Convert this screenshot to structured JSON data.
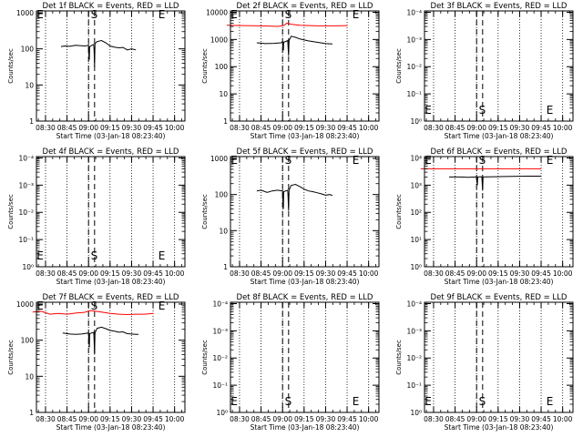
{
  "chart_data": [
    {
      "type": "line",
      "title": "Det 1f BLACK = Events, RED = LLD",
      "xlabel": "Start Time (03-Jan-18 08:23:40)",
      "ylabel": "Counts/sec",
      "x_tick_labels": [
        "08:30",
        "08:45",
        "09:00",
        "09:15",
        "09:30",
        "09:45",
        "10:00"
      ],
      "y_tick_labels": [
        "1",
        "10",
        "100",
        "1000"
      ],
      "ylim_log10": [
        0,
        3.05
      ],
      "markers": [
        {
          "label": "E",
          "x": "08:22"
        },
        {
          "label": "S",
          "x": "09:04"
        },
        {
          "label": "E",
          "x": "09:51"
        }
      ],
      "series": [
        {
          "color": "#000000",
          "values": [
            [
              8.68,
              2.06
            ],
            [
              8.72,
              2.08
            ],
            [
              8.78,
              2.07
            ],
            [
              8.85,
              2.1
            ],
            [
              8.9,
              2.09
            ],
            [
              8.96,
              2.08
            ],
            [
              9.0,
              2.1
            ],
            [
              9.003,
              1.9
            ],
            [
              9.01,
              1.7
            ],
            [
              9.013,
              2.06
            ],
            [
              9.04,
              2.1
            ],
            [
              9.06,
              2.12
            ],
            [
              9.065,
              1.95
            ],
            [
              9.07,
              1.5
            ],
            [
              9.075,
              2.15
            ],
            [
              9.1,
              2.2
            ],
            [
              9.15,
              2.23
            ],
            [
              9.2,
              2.17
            ],
            [
              9.25,
              2.08
            ],
            [
              9.3,
              2.05
            ],
            [
              9.35,
              2.03
            ],
            [
              9.4,
              2.04
            ],
            [
              9.45,
              1.97
            ],
            [
              9.5,
              2.0
            ],
            [
              9.55,
              1.97
            ]
          ]
        }
      ]
    },
    {
      "type": "line",
      "title": "Det 2f BLACK = Events, RED = LLD",
      "xlabel": "Start Time (03-Jan-18 08:23:40)",
      "ylabel": "Counts/sec",
      "x_tick_labels": [
        "08:30",
        "08:45",
        "09:00",
        "09:15",
        "09:30",
        "09:45",
        "10:00"
      ],
      "y_tick_labels": [
        "1",
        "10",
        "100",
        "1000",
        "10000"
      ],
      "ylim_log10": [
        0,
        4.05
      ],
      "markers": [
        {
          "label": "E",
          "x": "08:22"
        },
        {
          "label": "S",
          "x": "09:04"
        },
        {
          "label": "E",
          "x": "09:51"
        }
      ],
      "series": [
        {
          "color": "#000000",
          "values": [
            [
              8.7,
              2.88
            ],
            [
              8.8,
              2.85
            ],
            [
              8.9,
              2.86
            ],
            [
              8.98,
              2.88
            ],
            [
              9.0,
              2.92
            ],
            [
              9.003,
              2.7
            ],
            [
              9.01,
              2.6
            ],
            [
              9.013,
              2.9
            ],
            [
              9.06,
              2.96
            ],
            [
              9.065,
              2.7
            ],
            [
              9.07,
              2.4
            ],
            [
              9.075,
              2.96
            ],
            [
              9.1,
              3.12
            ],
            [
              9.15,
              3.08
            ],
            [
              9.2,
              3.02
            ],
            [
              9.3,
              2.95
            ],
            [
              9.4,
              2.9
            ],
            [
              9.5,
              2.85
            ],
            [
              9.58,
              2.84
            ]
          ]
        },
        {
          "color": "#ff0000",
          "values": [
            [
              8.35,
              3.52
            ],
            [
              8.55,
              3.51
            ],
            [
              8.75,
              3.5
            ],
            [
              8.95,
              3.48
            ],
            [
              9.02,
              3.52
            ],
            [
              9.05,
              3.6
            ],
            [
              9.1,
              3.56
            ],
            [
              9.2,
              3.52
            ],
            [
              9.4,
              3.5
            ],
            [
              9.6,
              3.5
            ],
            [
              9.75,
              3.51
            ]
          ]
        }
      ]
    },
    {
      "type": "line",
      "title": "Det 3f BLACK = Events, RED = LLD",
      "xlabel": "Start Time (03-Jan-18 08:23:40)",
      "ylabel": "Counts/sec",
      "x_tick_labels": [
        "08:30",
        "08:45",
        "09:00",
        "09:15",
        "09:30",
        "09:45",
        "10:00"
      ],
      "y_tick_labels": [
        "10⁰",
        "10⁻¹",
        "10⁻²",
        "10⁻³",
        "10⁻⁴"
      ],
      "ylim_log10": [
        0,
        4.05
      ],
      "markers": [
        {
          "label": "E",
          "x": "08:22"
        },
        {
          "label": "S",
          "x": "09:04"
        },
        {
          "label": "E",
          "x": "09:51"
        }
      ],
      "series": []
    },
    {
      "type": "line",
      "title": "Det 4f BLACK = Events, RED = LLD",
      "xlabel": "Start Time (03-Jan-18 08:23:40)",
      "ylabel": "Counts/sec",
      "x_tick_labels": [
        "08:30",
        "08:45",
        "09:00",
        "09:15",
        "09:30",
        "09:45",
        "10:00"
      ],
      "y_tick_labels": [
        "10⁰",
        "10⁻¹",
        "10⁻²",
        "10⁻³",
        "10⁻⁴"
      ],
      "ylim_log10": [
        0,
        4.05
      ],
      "markers": [
        {
          "label": "E",
          "x": "08:22"
        },
        {
          "label": "S",
          "x": "09:04"
        },
        {
          "label": "E",
          "x": "09:51"
        }
      ],
      "series": []
    },
    {
      "type": "line",
      "title": "Det 5f BLACK = Events, RED = LLD",
      "xlabel": "Start Time (03-Jan-18 08:23:40)",
      "ylabel": "Counts/sec",
      "x_tick_labels": [
        "08:30",
        "08:45",
        "09:00",
        "09:15",
        "09:30",
        "09:45",
        "10:00"
      ],
      "y_tick_labels": [
        "1",
        "10",
        "100",
        "1000"
      ],
      "ylim_log10": [
        0,
        3.05
      ],
      "markers": [
        {
          "label": "E",
          "x": "08:22"
        },
        {
          "label": "S",
          "x": "09:04"
        },
        {
          "label": "E",
          "x": "09:51"
        }
      ],
      "series": [
        {
          "color": "#000000",
          "values": [
            [
              8.7,
              2.1
            ],
            [
              8.75,
              2.12
            ],
            [
              8.82,
              2.06
            ],
            [
              8.88,
              2.1
            ],
            [
              8.94,
              2.12
            ],
            [
              9.0,
              2.1
            ],
            [
              9.003,
              1.9
            ],
            [
              9.01,
              1.6
            ],
            [
              9.013,
              2.08
            ],
            [
              9.06,
              2.12
            ],
            [
              9.065,
              1.9
            ],
            [
              9.07,
              1.55
            ],
            [
              9.075,
              2.12
            ],
            [
              9.1,
              2.25
            ],
            [
              9.15,
              2.28
            ],
            [
              9.2,
              2.22
            ],
            [
              9.25,
              2.15
            ],
            [
              9.3,
              2.1
            ],
            [
              9.35,
              2.08
            ],
            [
              9.4,
              2.05
            ],
            [
              9.45,
              2.02
            ],
            [
              9.5,
              1.98
            ],
            [
              9.55,
              2.0
            ],
            [
              9.58,
              1.97
            ]
          ]
        }
      ]
    },
    {
      "type": "line",
      "title": "Det 6f BLACK = Events, RED = LLD",
      "xlabel": "Start Time (03-Jan-18 08:23:40)",
      "ylabel": "Counts/sec",
      "x_tick_labels": [
        "08:30",
        "08:45",
        "09:00",
        "09:15",
        "09:30",
        "09:45",
        "10:00"
      ],
      "y_tick_labels": [
        "10⁰",
        "10¹",
        "10²",
        "10³",
        "10⁴"
      ],
      "ylim_log10": [
        0,
        4.05
      ],
      "markers": [
        {
          "label": "E",
          "x": "08:22"
        },
        {
          "label": "S",
          "x": "09:04"
        },
        {
          "label": "E",
          "x": "09:51"
        }
      ],
      "series": [
        {
          "color": "#000000",
          "values": [
            [
              8.68,
              3.3
            ],
            [
              8.8,
              3.3
            ],
            [
              8.9,
              3.29
            ],
            [
              9.0,
              3.3
            ],
            [
              9.003,
              3.15
            ],
            [
              9.01,
              3.0
            ],
            [
              9.013,
              3.3
            ],
            [
              9.06,
              3.31
            ],
            [
              9.065,
              3.1
            ],
            [
              9.07,
              2.8
            ],
            [
              9.075,
              3.3
            ],
            [
              9.2,
              3.31
            ],
            [
              9.4,
              3.32
            ],
            [
              9.6,
              3.33
            ],
            [
              9.75,
              3.33
            ]
          ]
        },
        {
          "color": "#ff0000",
          "values": [
            [
              8.35,
              3.6
            ],
            [
              8.6,
              3.6
            ],
            [
              8.85,
              3.6
            ],
            [
              9.1,
              3.6
            ],
            [
              9.35,
              3.6
            ],
            [
              9.6,
              3.6
            ],
            [
              9.75,
              3.6
            ]
          ]
        }
      ]
    },
    {
      "type": "line",
      "title": "Det 7f BLACK = Events, RED = LLD",
      "xlabel": "Start Time (03-Jan-18 08:23:40)",
      "ylabel": "Counts/sec",
      "x_tick_labels": [
        "08:30",
        "08:45",
        "09:00",
        "09:15",
        "09:30",
        "09:45",
        "10:00"
      ],
      "y_tick_labels": [
        "1",
        "10",
        "100",
        "1000"
      ],
      "ylim_log10": [
        0,
        3.05
      ],
      "markers": [
        {
          "label": "E",
          "x": "08:22"
        },
        {
          "label": "S",
          "x": "09:04"
        },
        {
          "label": "E",
          "x": "09:51"
        }
      ],
      "series": [
        {
          "color": "#000000",
          "values": [
            [
              8.7,
              2.2
            ],
            [
              8.78,
              2.17
            ],
            [
              8.85,
              2.16
            ],
            [
              8.92,
              2.17
            ],
            [
              9.0,
              2.2
            ],
            [
              9.003,
              2.0
            ],
            [
              9.01,
              1.8
            ],
            [
              9.013,
              2.18
            ],
            [
              9.06,
              2.22
            ],
            [
              9.065,
              2.0
            ],
            [
              9.07,
              1.6
            ],
            [
              9.075,
              2.2
            ],
            [
              9.1,
              2.33
            ],
            [
              9.15,
              2.36
            ],
            [
              9.2,
              2.32
            ],
            [
              9.25,
              2.27
            ],
            [
              9.3,
              2.25
            ],
            [
              9.35,
              2.22
            ],
            [
              9.4,
              2.23
            ],
            [
              9.45,
              2.18
            ],
            [
              9.5,
              2.17
            ],
            [
              9.55,
              2.16
            ],
            [
              9.58,
              2.16
            ]
          ]
        },
        {
          "color": "#ff0000",
          "values": [
            [
              8.35,
              2.78
            ],
            [
              8.45,
              2.8
            ],
            [
              8.55,
              2.72
            ],
            [
              8.65,
              2.74
            ],
            [
              8.75,
              2.72
            ],
            [
              8.85,
              2.75
            ],
            [
              8.95,
              2.77
            ],
            [
              9.02,
              2.82
            ],
            [
              9.08,
              2.8
            ],
            [
              9.15,
              2.78
            ],
            [
              9.25,
              2.74
            ],
            [
              9.35,
              2.72
            ],
            [
              9.45,
              2.71
            ],
            [
              9.55,
              2.72
            ],
            [
              9.65,
              2.72
            ],
            [
              9.75,
              2.74
            ]
          ]
        }
      ]
    },
    {
      "type": "line",
      "title": "Det 8f BLACK = Events, RED = LLD",
      "xlabel": "Start Time (03-Jan-18 08:23:40)",
      "ylabel": "Counts/sec",
      "x_tick_labels": [
        "08:30",
        "08:45",
        "09:00",
        "09:15",
        "09:30",
        "09:45",
        "10:00"
      ],
      "y_tick_labels": [
        "10⁰",
        "10⁻¹",
        "10⁻²",
        "10⁻³",
        "10⁻⁴"
      ],
      "ylim_log10": [
        0,
        4.05
      ],
      "markers": [
        {
          "label": "E",
          "x": "08:22"
        },
        {
          "label": "S",
          "x": "09:04"
        },
        {
          "label": "E",
          "x": "09:51"
        }
      ],
      "series": []
    },
    {
      "type": "line",
      "title": "Det 9f BLACK = Events, RED = LLD",
      "xlabel": "Start Time (03-Jan-18 08:23:40)",
      "ylabel": "Counts/sec",
      "x_tick_labels": [
        "08:30",
        "08:45",
        "09:00",
        "09:15",
        "09:30",
        "09:45",
        "10:00"
      ],
      "y_tick_labels": [
        "10⁰",
        "10⁻¹",
        "10⁻²",
        "10⁻³",
        "10⁻⁴"
      ],
      "ylim_log10": [
        0,
        4.05
      ],
      "markers": [
        {
          "label": "E",
          "x": "08:22"
        },
        {
          "label": "S",
          "x": "09:04"
        },
        {
          "label": "E",
          "x": "09:51"
        }
      ],
      "series": []
    }
  ]
}
